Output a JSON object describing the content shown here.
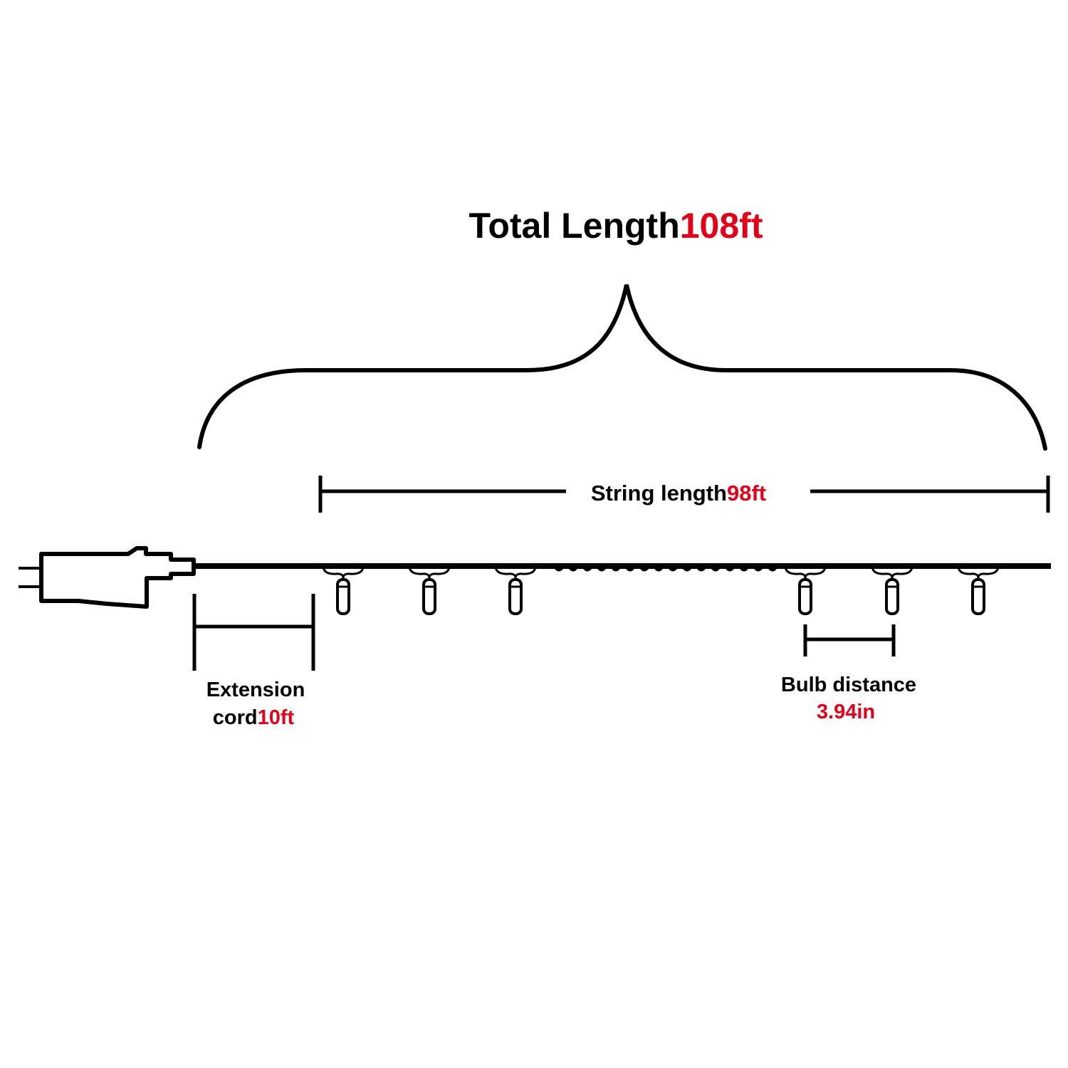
{
  "total_length": {
    "label": "Total Length",
    "value": "108ft"
  },
  "string_length": {
    "label": "String length",
    "value": "98ft"
  },
  "extension_cord": {
    "label_line1": "Extension",
    "label_line2": "cord",
    "value": "10ft"
  },
  "bulb_distance": {
    "label": "Bulb distance",
    "value": "3.94in"
  },
  "colors": {
    "text": "#000000",
    "accent": "#e5001a",
    "line": "#000000",
    "background": "#ffffff"
  }
}
